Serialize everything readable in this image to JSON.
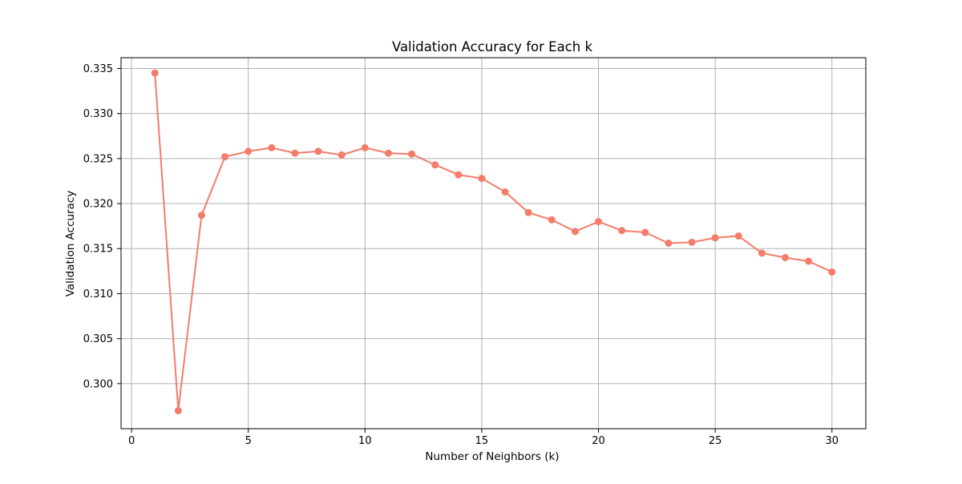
{
  "chart_data": {
    "type": "line",
    "title": "Validation Accuracy for Each k",
    "xlabel": "Number of Neighbors (k)",
    "ylabel": "Validation Accuracy",
    "xlim": [
      -0.45,
      31.45
    ],
    "ylim": [
      0.295,
      0.3362
    ],
    "xticks": [
      0,
      5,
      10,
      15,
      20,
      25,
      30
    ],
    "yticks": [
      0.3,
      0.305,
      0.31,
      0.315,
      0.32,
      0.325,
      0.33,
      0.335
    ],
    "grid": true,
    "marker": "circle",
    "series": [
      {
        "color": "#f47c6a",
        "x": [
          1,
          2,
          3,
          4,
          5,
          6,
          7,
          8,
          9,
          10,
          11,
          12,
          13,
          14,
          15,
          16,
          17,
          18,
          19,
          20,
          21,
          22,
          23,
          24,
          25,
          26,
          27,
          28,
          29,
          30
        ],
        "y": [
          0.3345,
          0.297,
          0.3187,
          0.3252,
          0.3258,
          0.3262,
          0.3256,
          0.3258,
          0.3254,
          0.3262,
          0.3256,
          0.3255,
          0.3243,
          0.3232,
          0.3228,
          0.3213,
          0.319,
          0.3182,
          0.3169,
          0.318,
          0.317,
          0.3168,
          0.3156,
          0.3157,
          0.3162,
          0.3164,
          0.3145,
          0.314,
          0.3136,
          0.3124
        ]
      }
    ]
  }
}
